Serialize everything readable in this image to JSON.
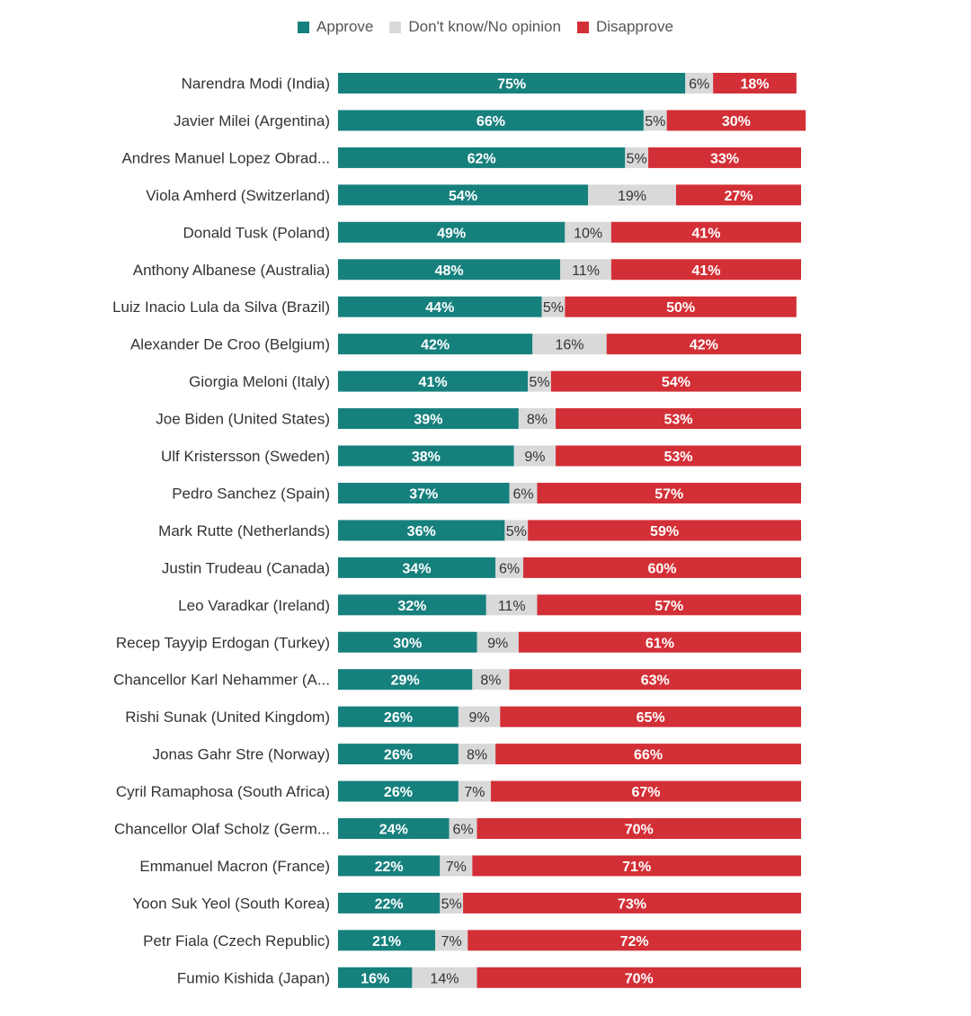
{
  "legend": [
    {
      "label": "Approve",
      "color": "#16807d"
    },
    {
      "label": "Don't know/No opinion",
      "color": "#d9d9d9"
    },
    {
      "label": "Disapprove",
      "color": "#d32f36"
    }
  ],
  "chart_data": {
    "type": "bar",
    "orientation": "horizontal",
    "stacked": true,
    "title": "",
    "xlabel": "",
    "ylabel": "",
    "categories": [
      "Narendra Modi (India)",
      "Javier Milei (Argentina)",
      "Andres Manuel Lopez Obrad...",
      "Viola Amherd (Switzerland)",
      "Donald Tusk (Poland)",
      "Anthony Albanese (Australia)",
      "Luiz Inacio Lula da Silva (Brazil)",
      "Alexander De Croo (Belgium)",
      "Giorgia Meloni (Italy)",
      "Joe Biden (United States)",
      "Ulf Kristersson (Sweden)",
      "Pedro Sanchez (Spain)",
      "Mark Rutte (Netherlands)",
      "Justin Trudeau (Canada)",
      "Leo Varadkar (Ireland)",
      "Recep Tayyip Erdogan (Turkey)",
      "Chancellor Karl Nehammer (A...",
      "Rishi Sunak (United Kingdom)",
      "Jonas Gahr Stre (Norway)",
      "Cyril Ramaphosa (South Africa)",
      "Chancellor Olaf Scholz (Germ...",
      "Emmanuel Macron (France)",
      "Yoon Suk Yeol (South Korea)",
      "Petr Fiala (Czech Republic)",
      "Fumio Kishida (Japan)"
    ],
    "series": [
      {
        "name": "Approve",
        "color": "#16807d",
        "values": [
          75,
          66,
          62,
          54,
          49,
          48,
          44,
          42,
          41,
          39,
          38,
          37,
          36,
          34,
          32,
          30,
          29,
          26,
          26,
          26,
          24,
          22,
          22,
          21,
          16
        ]
      },
      {
        "name": "Don't know/No opinion",
        "color": "#d9d9d9",
        "values": [
          6,
          5,
          5,
          19,
          10,
          11,
          5,
          16,
          5,
          8,
          9,
          6,
          5,
          6,
          11,
          9,
          8,
          9,
          8,
          7,
          6,
          7,
          5,
          7,
          14
        ]
      },
      {
        "name": "Disapprove",
        "color": "#d32f36",
        "values": [
          18,
          30,
          33,
          27,
          41,
          41,
          50,
          42,
          54,
          53,
          53,
          57,
          59,
          60,
          57,
          61,
          63,
          65,
          66,
          67,
          70,
          71,
          73,
          72,
          70
        ]
      }
    ],
    "value_suffix": "%",
    "xlim": [
      0,
      100
    ],
    "grid": false,
    "legend_position": "top-center"
  }
}
